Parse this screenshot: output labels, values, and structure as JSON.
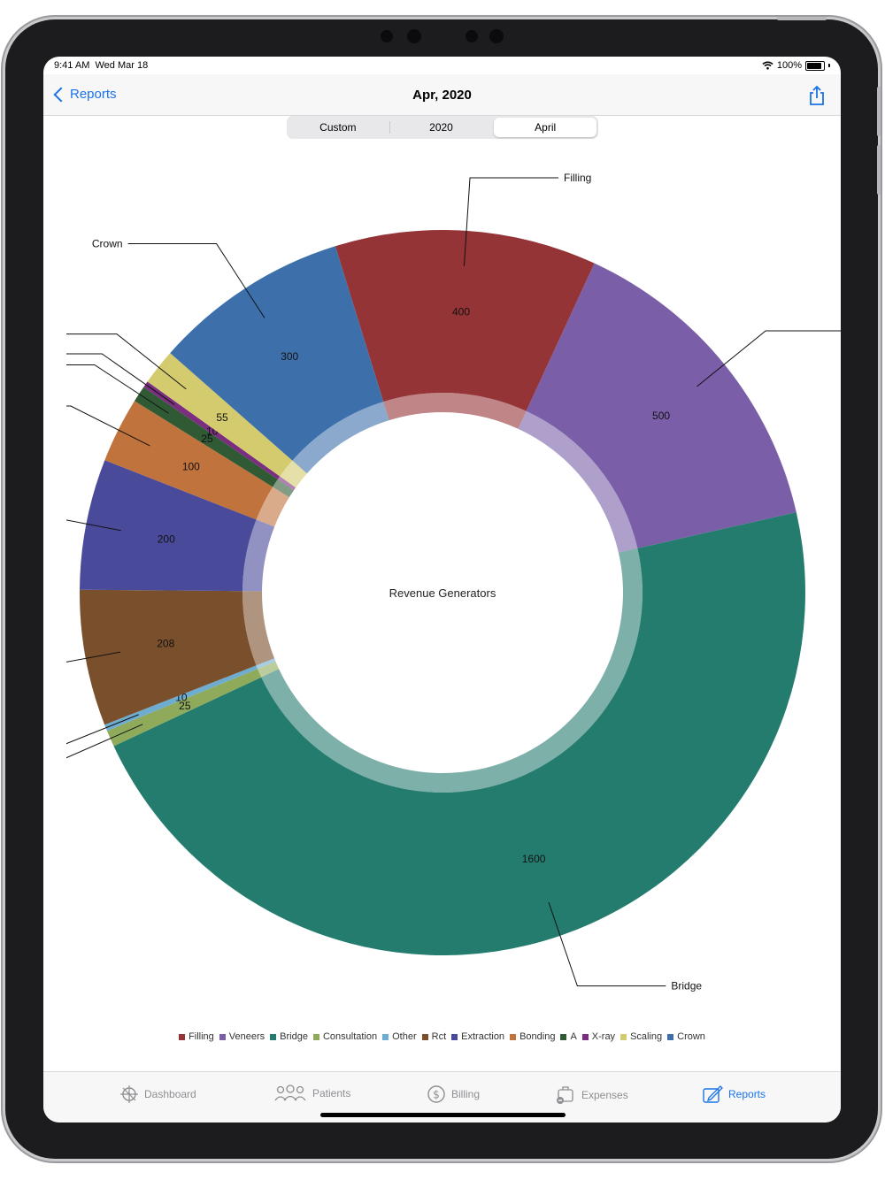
{
  "status": {
    "time": "9:41 AM",
    "date": "Wed Mar 18",
    "battery": "100%"
  },
  "nav": {
    "back_label": "Reports",
    "title": "Apr, 2020"
  },
  "segments": {
    "items": [
      "Custom",
      "2020",
      "April"
    ],
    "selected": "April"
  },
  "tabs": [
    {
      "label": "Dashboard",
      "icon": "dashboard-icon"
    },
    {
      "label": "Patients",
      "icon": "patients-icon"
    },
    {
      "label": "Billing",
      "icon": "billing-icon"
    },
    {
      "label": "Expenses",
      "icon": "expenses-icon"
    },
    {
      "label": "Reports",
      "icon": "reports-icon",
      "active": true
    }
  ],
  "chart_data": {
    "type": "pie",
    "donut": true,
    "center_text": "Revenue Generators",
    "legend_position": "bottom",
    "slices": [
      {
        "name": "Filling",
        "value": 400,
        "color": "#943437"
      },
      {
        "name": "Veneers",
        "value": 500,
        "color": "#7a5fa8"
      },
      {
        "name": "Bridge",
        "value": 1600,
        "color": "#247c6e"
      },
      {
        "name": "Consultation",
        "value": 25,
        "color": "#8faa5a"
      },
      {
        "name": "Other",
        "value": 10,
        "color": "#6eadd0"
      },
      {
        "name": "Rct",
        "value": 208,
        "color": "#7a4f2c"
      },
      {
        "name": "Extraction",
        "value": 200,
        "color": "#4a4a9a"
      },
      {
        "name": "Bonding",
        "value": 100,
        "color": "#c0733c"
      },
      {
        "name": "A",
        "value": 25,
        "color": "#2f5a34"
      },
      {
        "name": "X-ray",
        "value": 10,
        "color": "#7b2d80"
      },
      {
        "name": "Scaling",
        "value": 55,
        "color": "#d3cb6e"
      },
      {
        "name": "Crown",
        "value": 300,
        "color": "#3d70ab"
      }
    ]
  }
}
